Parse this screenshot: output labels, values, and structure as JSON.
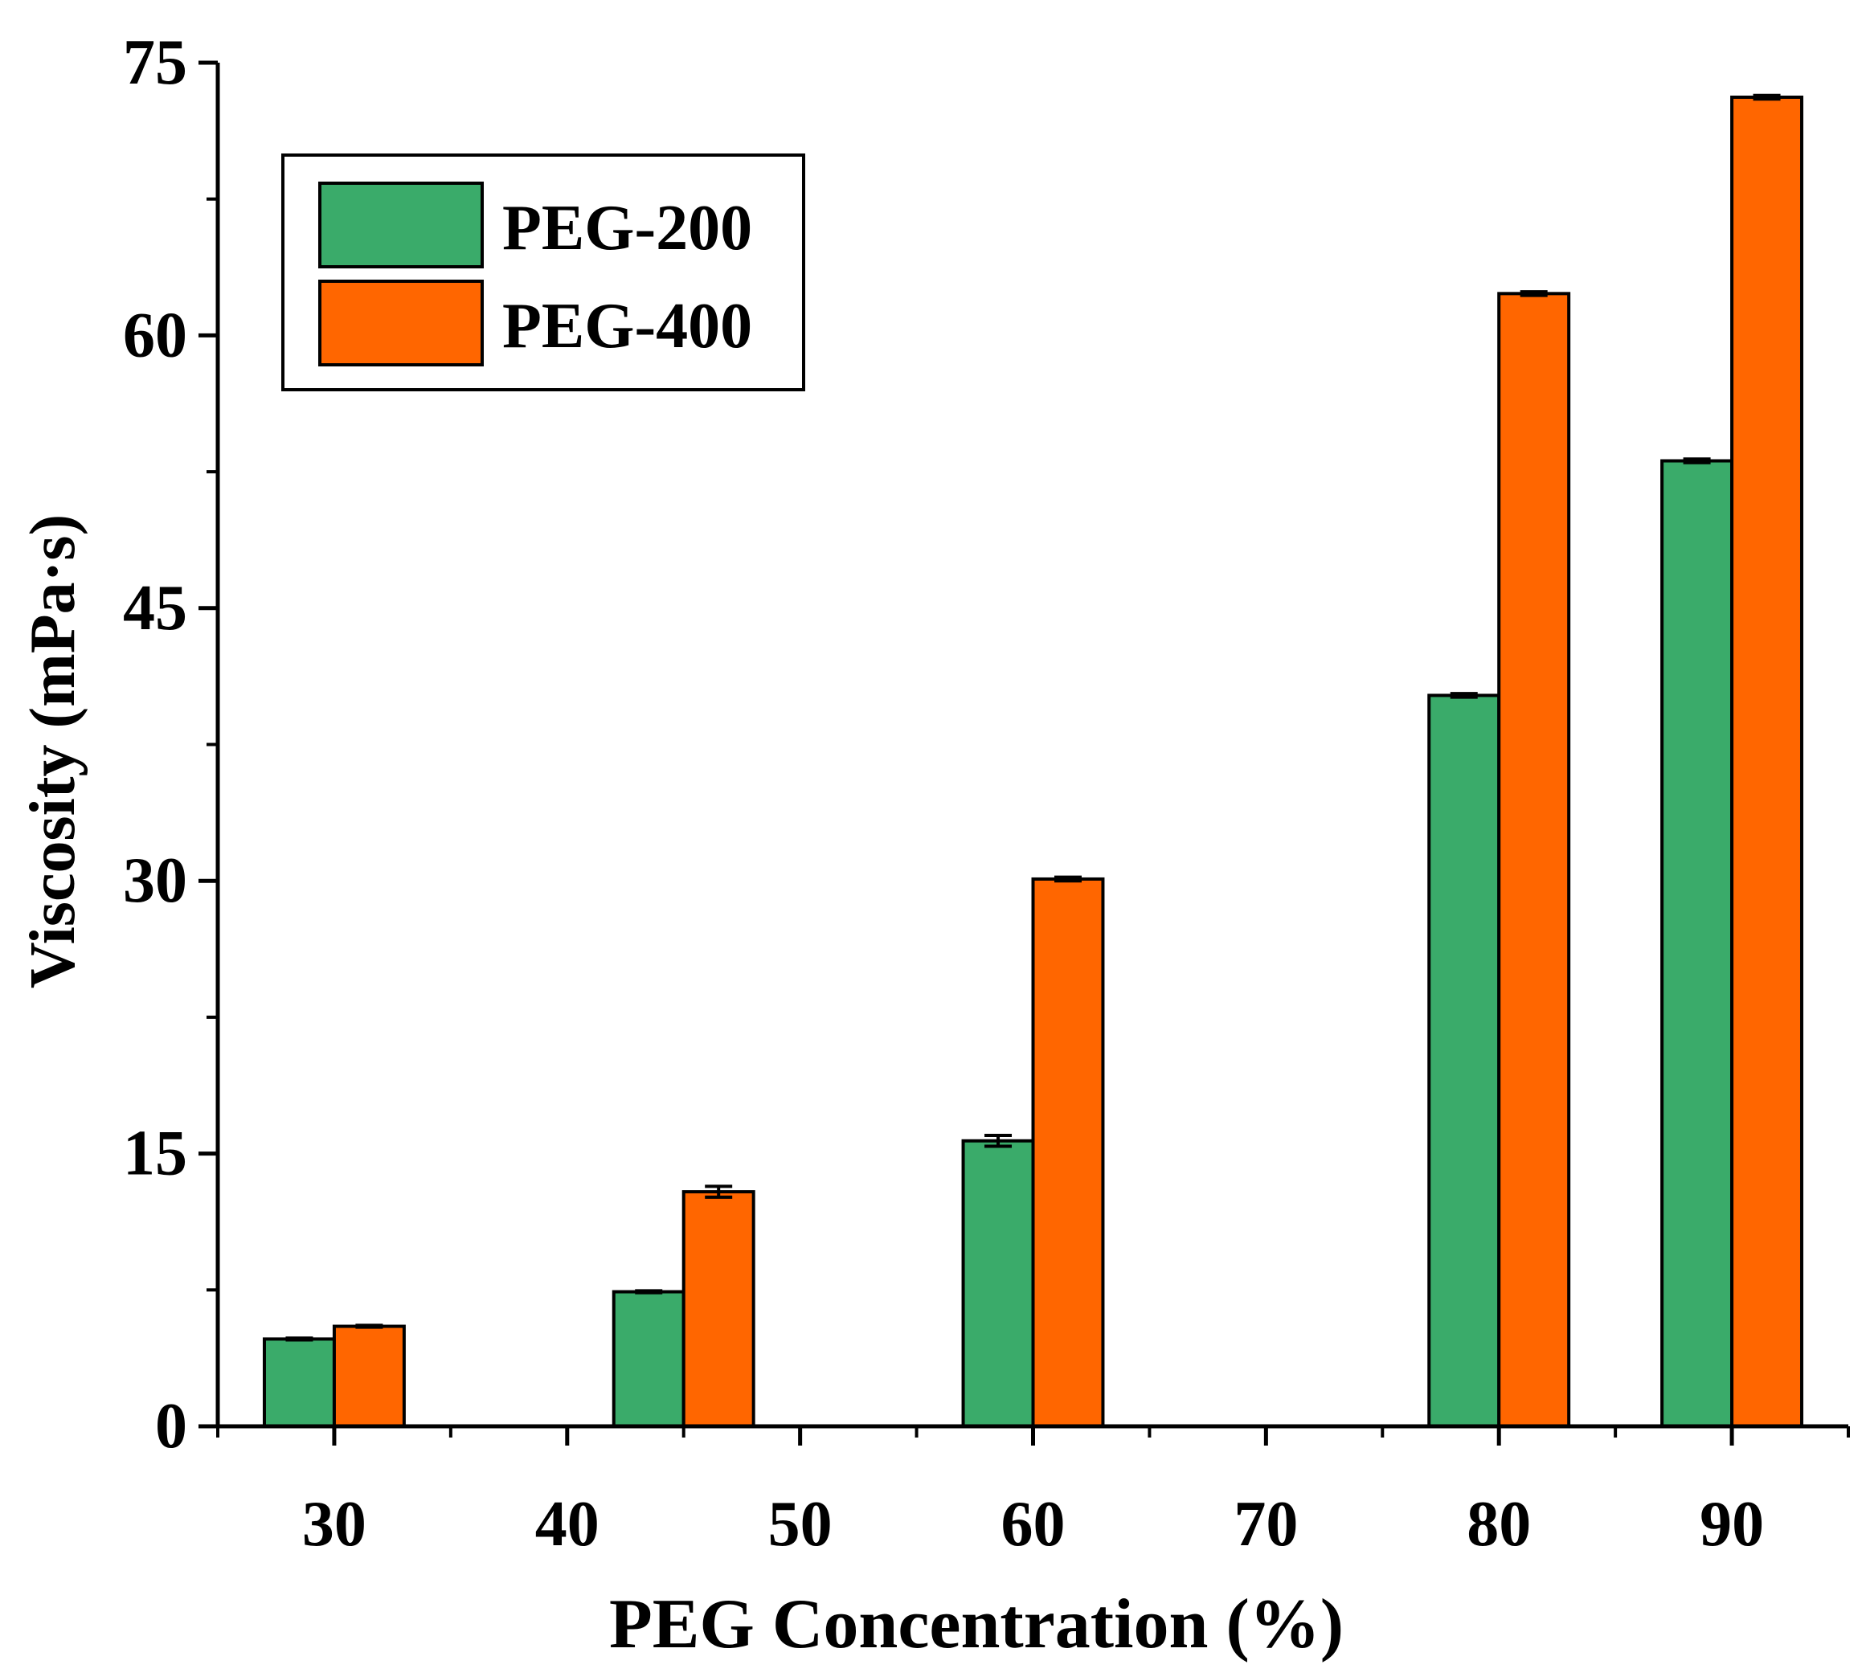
{
  "chart_data": {
    "type": "bar",
    "title": "",
    "xlabel": "PEG Concentration (%)",
    "ylabel": "Viscosity (mPa·s)",
    "xlim": [
      25,
      95
    ],
    "ylim": [
      0,
      75
    ],
    "x_ticks": [
      30,
      40,
      50,
      60,
      70,
      80,
      90
    ],
    "y_ticks": [
      0,
      15,
      30,
      45,
      60,
      75
    ],
    "categories": [
      30,
      45,
      60,
      80,
      90
    ],
    "series": [
      {
        "name": "PEG-200",
        "color": "#3aab6a",
        "values": [
          4.8,
          7.4,
          15.7,
          40.2,
          53.1
        ],
        "errors": [
          0.05,
          0.05,
          0.3,
          0.1,
          0.1
        ]
      },
      {
        "name": "PEG-400",
        "color": "#ff6600",
        "values": [
          5.5,
          12.9,
          30.1,
          62.3,
          73.1
        ],
        "errors": [
          0.05,
          0.3,
          0.1,
          0.1,
          0.1
        ]
      }
    ],
    "legend": {
      "position": "top-left"
    },
    "grid": false
  }
}
